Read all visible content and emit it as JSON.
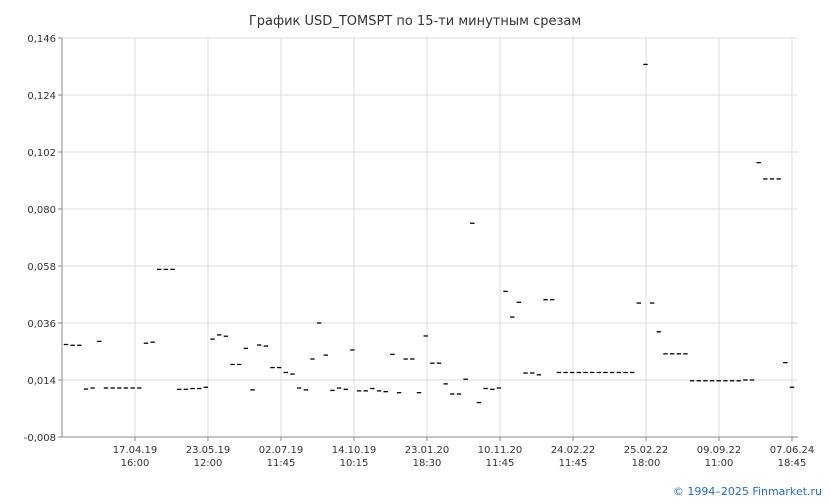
{
  "chart_data": {
    "type": "scatter",
    "title": "График USD_TOMSPT по 15-ти минутным срезам",
    "xlabel": "",
    "ylabel": "",
    "ylim": [
      -0.008,
      0.146
    ],
    "y_ticks": [
      "0,146",
      "0,124",
      "0,102",
      "0,080",
      "0,058",
      "0,036",
      "0,014",
      "-0,008"
    ],
    "x_ticks": [
      {
        "date": "17.04.19",
        "time": "16:00"
      },
      {
        "date": "23.05.19",
        "time": "12:00"
      },
      {
        "date": "02.07.19",
        "time": "11:45"
      },
      {
        "date": "14.10.19",
        "time": "10:15"
      },
      {
        "date": "23.01.20",
        "time": "18:30"
      },
      {
        "date": "10.11.20",
        "time": "11:45"
      },
      {
        "date": "24.02.22",
        "time": "11:45"
      },
      {
        "date": "25.02.22",
        "time": "18:00"
      },
      {
        "date": "09.09.22",
        "time": "11:00"
      },
      {
        "date": "07.06.24",
        "time": "18:45"
      }
    ],
    "grid": true,
    "series": [
      {
        "color": "#000000",
        "values": [
          0.0277,
          0.0274,
          0.0274,
          0.0105,
          0.0109,
          0.0289,
          0.0109,
          0.0109,
          0.0109,
          0.0109,
          0.0109,
          0.0109,
          0.0282,
          0.0286,
          0.0567,
          0.0567,
          0.0567,
          0.0104,
          0.0104,
          0.0107,
          0.0107,
          0.0112,
          0.0298,
          0.0314,
          0.0309,
          0.02,
          0.02,
          0.0262,
          0.0102,
          0.0275,
          0.0271,
          0.0188,
          0.0188,
          0.0169,
          0.0163,
          0.0109,
          0.0102,
          0.0221,
          0.036,
          0.0236,
          0.01,
          0.0109,
          0.0104,
          0.0256,
          0.0098,
          0.0098,
          0.0107,
          0.0098,
          0.0095,
          0.0239,
          0.0091,
          0.0221,
          0.0221,
          0.0091,
          0.031,
          0.0205,
          0.0205,
          0.0125,
          0.0086,
          0.0086,
          0.0143,
          0.0745,
          0.0053,
          0.0107,
          0.0104,
          0.0109,
          0.0482,
          0.0383,
          0.044,
          0.0167,
          0.0167,
          0.016,
          0.045,
          0.045,
          0.0169,
          0.0169,
          0.0169,
          0.0169,
          0.0169,
          0.0169,
          0.0169,
          0.0169,
          0.0169,
          0.0169,
          0.0169,
          0.0169,
          0.0437,
          0.1358,
          0.0437,
          0.0326,
          0.0241,
          0.0241,
          0.0241,
          0.0241,
          0.0137,
          0.0137,
          0.0137,
          0.0137,
          0.0137,
          0.0137,
          0.0137,
          0.0137,
          0.014,
          0.014,
          0.0979,
          0.0916,
          0.0916,
          0.0916,
          0.0207,
          0.0112
        ]
      }
    ]
  },
  "footer": {
    "copyright": "© 1994–2025 Finmarket.ru"
  }
}
